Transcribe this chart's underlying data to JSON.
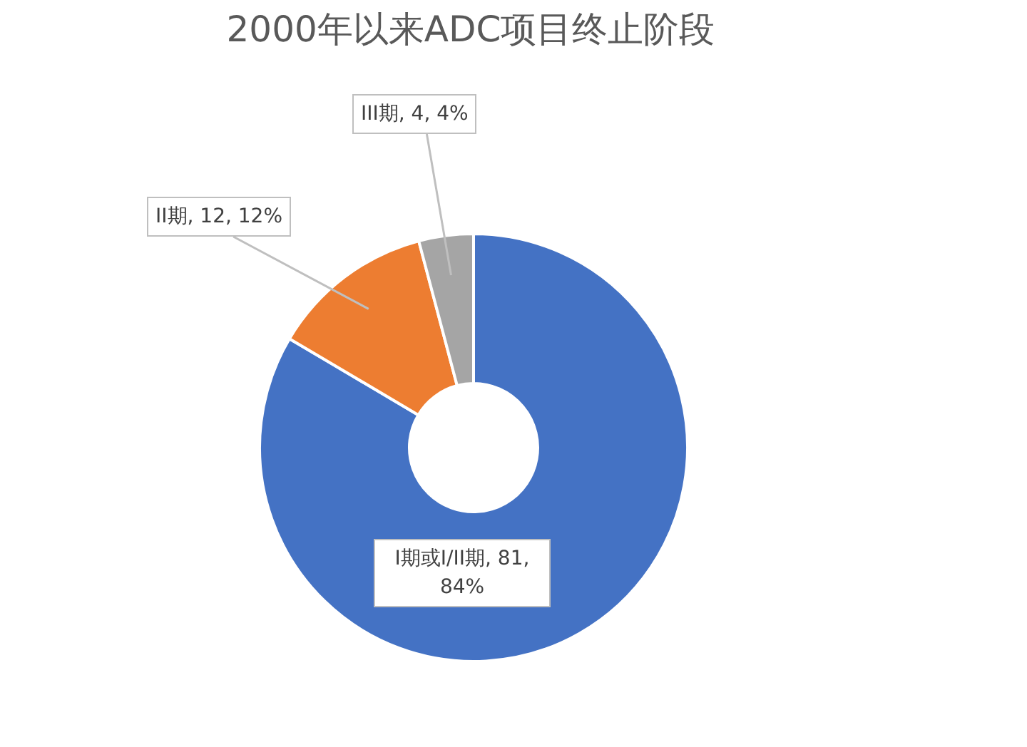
{
  "chart_data": {
    "type": "donut",
    "title": "2000年以来ADC项目终止阶段",
    "categories": [
      "I期或I/II期",
      "II期",
      "III期"
    ],
    "values": [
      81,
      12,
      4
    ],
    "value_labels": [
      ", 81, 84%",
      ", 12, 12%",
      ", 4, 4%"
    ],
    "colors": [
      "#4472c4",
      "#ed7d31",
      "#a5a5a5"
    ],
    "legend": false
  }
}
